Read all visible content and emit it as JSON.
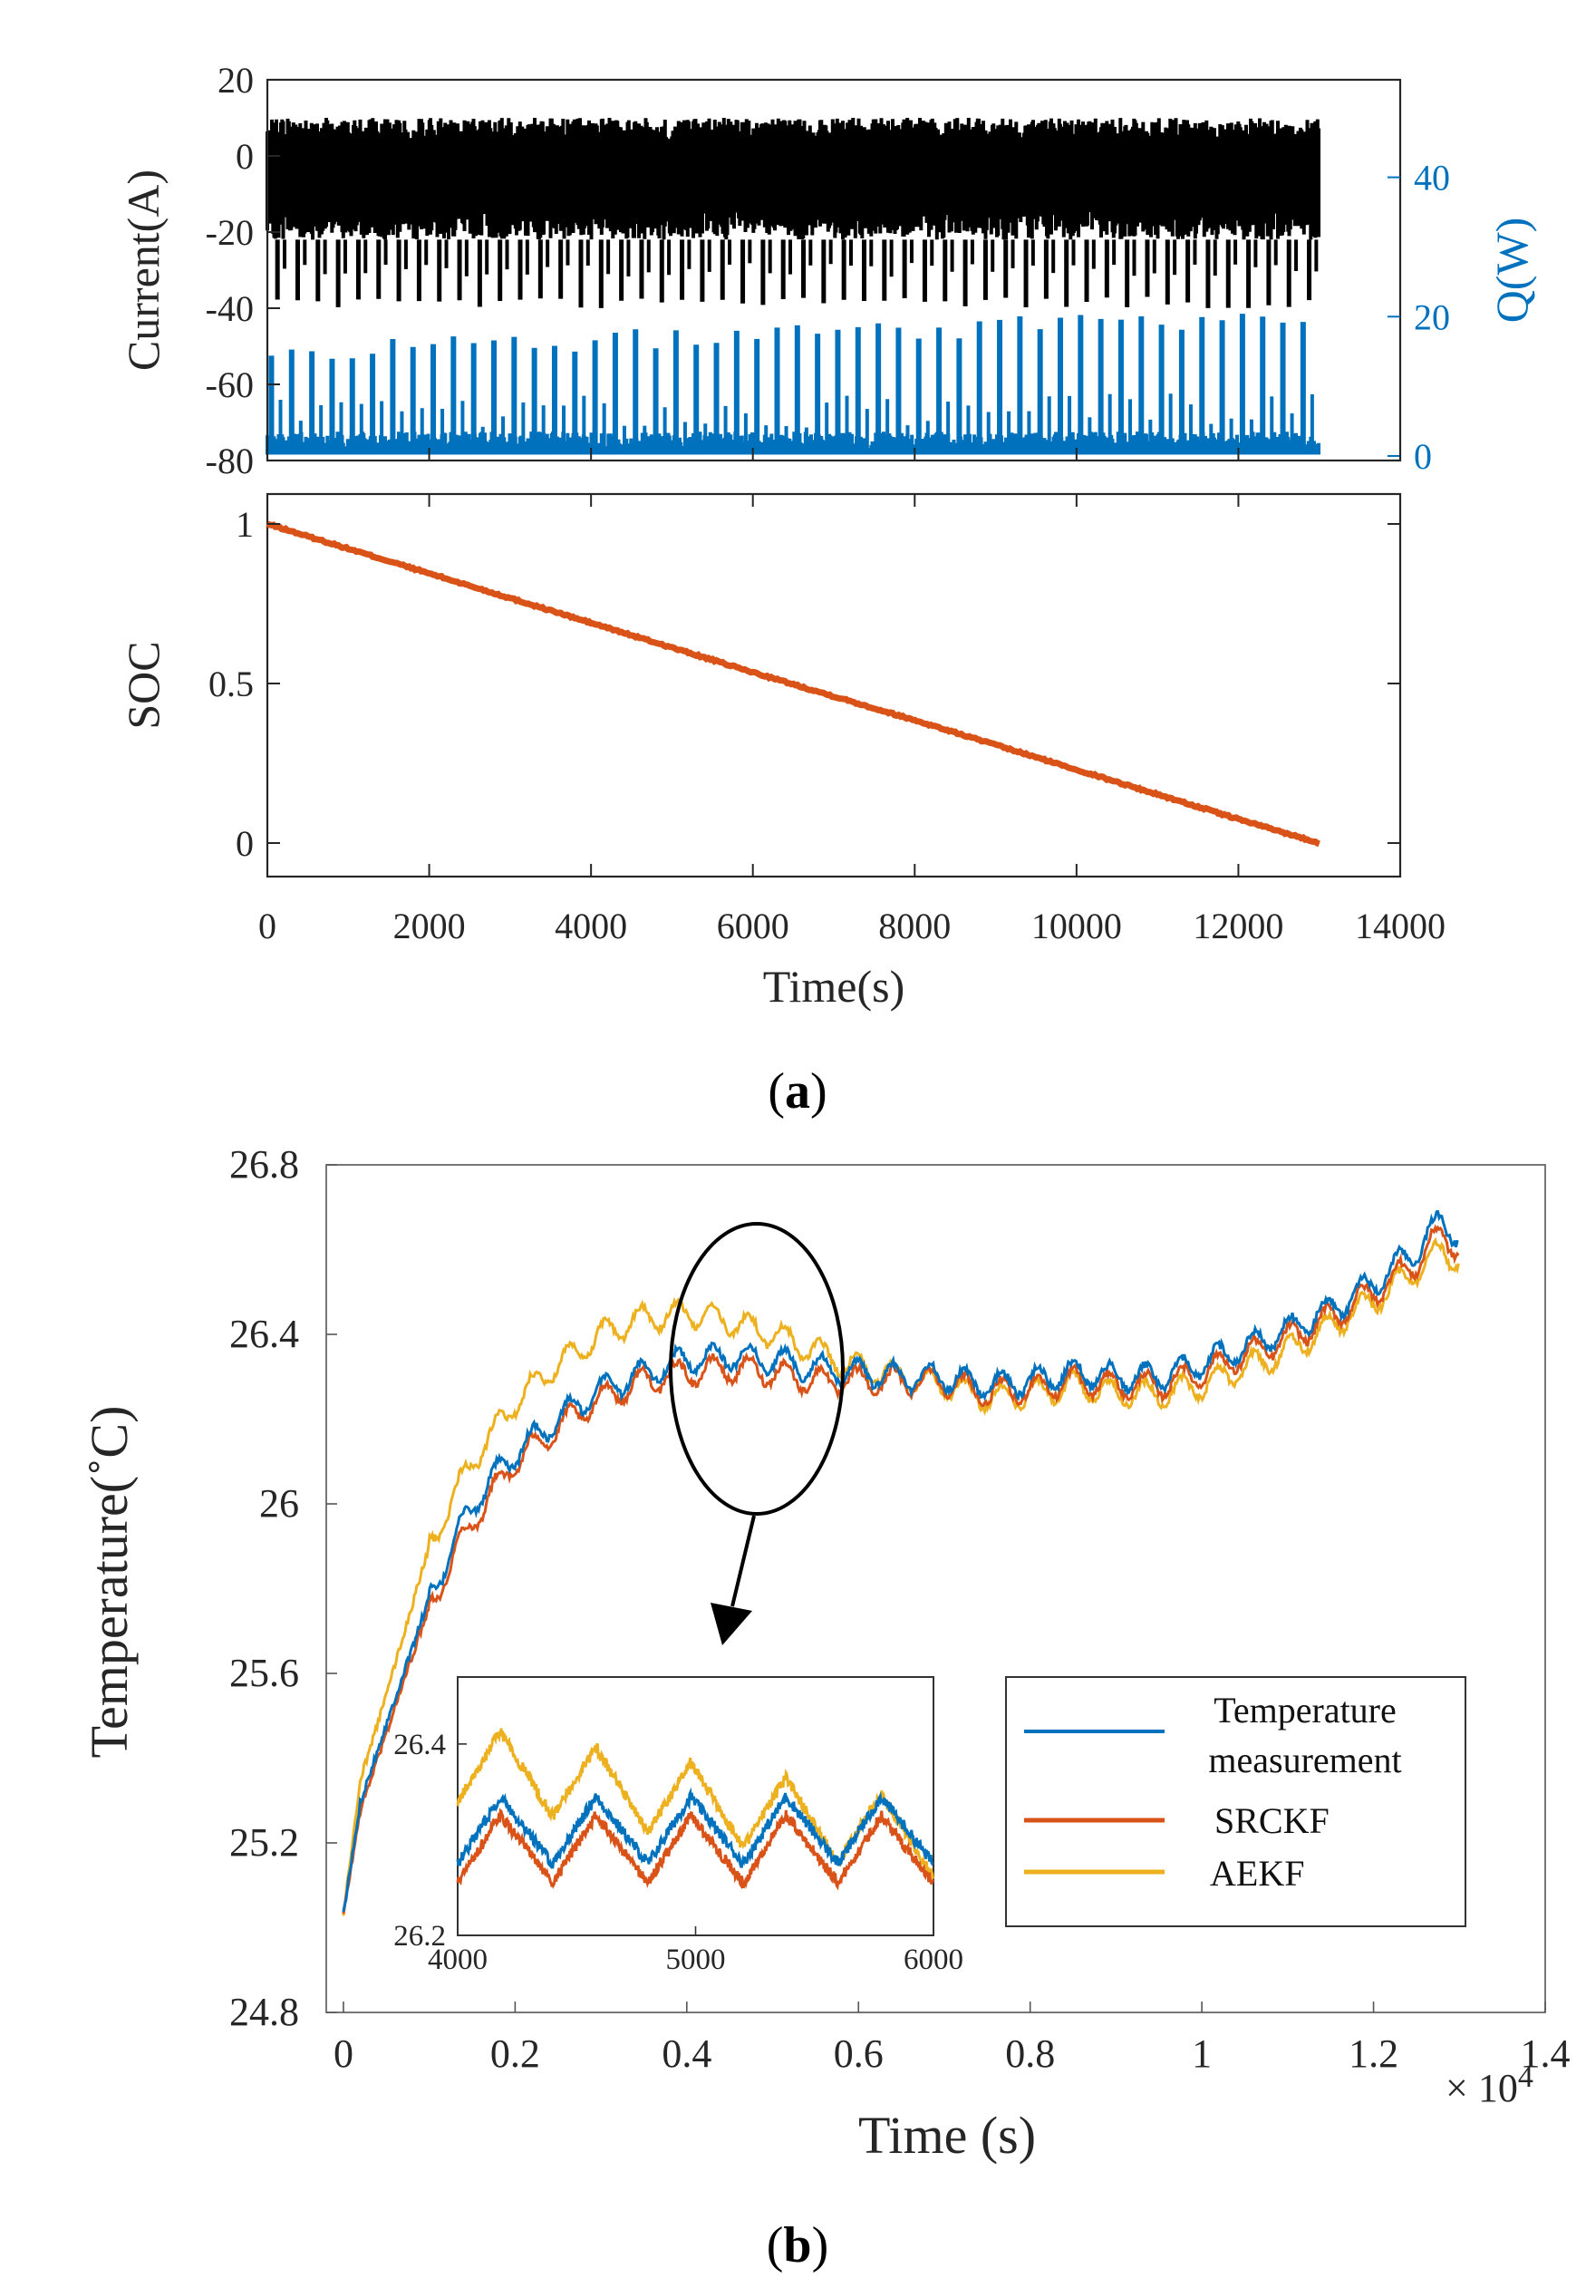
{
  "figure": {
    "panel_a_label_open": "(",
    "panel_a_label_letter": "a",
    "panel_a_label_close": ")",
    "panel_b_label_open": "(",
    "panel_b_label_letter": "b",
    "panel_b_label_close": ")"
  },
  "chart_data": [
    {
      "id": "a-top",
      "type": "line",
      "ylabel": "Current(A)",
      "ylabel_right": "Q(W)",
      "xlim": [
        0,
        14000
      ],
      "ylim": [
        -80,
        20
      ],
      "ylim_right": [
        0,
        54
      ],
      "yticks": [
        20,
        0,
        -20,
        -40,
        -60,
        -80
      ],
      "ytick_labels": [
        "20",
        "0",
        "-20",
        "-40",
        "-60",
        "-80"
      ],
      "yticks_right": [
        40,
        20,
        0
      ],
      "ytick_labels_right": [
        "40",
        "20",
        "0"
      ],
      "series": [
        {
          "name": "Current",
          "axis": "left",
          "color": "#000000",
          "x_range": [
            0,
            13000
          ],
          "upper_envelope": 10,
          "lower_envelope": -22,
          "pulse_min": -40,
          "pulse_count": 52
        },
        {
          "name": "Q",
          "axis": "right",
          "color": "#0072BD",
          "x_range": [
            0,
            13000
          ],
          "baseline": 1,
          "pulse_count": 52,
          "pulse_peak_start": 15,
          "pulse_peak_end": 20,
          "max_peak": 20
        }
      ]
    },
    {
      "id": "a-bottom",
      "type": "line",
      "xlabel": "Time(s)",
      "ylabel": "SOC",
      "xlim": [
        0,
        14000
      ],
      "ylim": [
        -0.1,
        1.05
      ],
      "xticks": [
        0,
        2000,
        4000,
        6000,
        8000,
        10000,
        12000,
        14000
      ],
      "xtick_labels": [
        "0",
        "2000",
        "4000",
        "6000",
        "8000",
        "10000",
        "12000",
        "14000"
      ],
      "yticks": [
        1,
        0.5,
        0
      ],
      "ytick_labels": [
        "1",
        "0.5",
        "0"
      ],
      "series": [
        {
          "name": "SOC",
          "color": "#D95319",
          "x": [
            0,
            2000,
            4000,
            6000,
            8000,
            10000,
            12000,
            13000
          ],
          "y": [
            1.0,
            0.845,
            0.69,
            0.535,
            0.385,
            0.23,
            0.075,
            0.0
          ]
        }
      ]
    },
    {
      "id": "b-main",
      "type": "line",
      "xlabel": "Time (s)",
      "ylabel": "Temperature(˚C)",
      "x_multiplier": "× 10",
      "x_multiplier_exp": "4",
      "xlim": [
        -0.02,
        1.4
      ],
      "ylim": [
        24.8,
        26.8
      ],
      "xticks": [
        0,
        0.2,
        0.4,
        0.6,
        0.8,
        1,
        1.2,
        1.4
      ],
      "xtick_labels": [
        "0",
        "0.2",
        "0.4",
        "0.6",
        "0.8",
        "1",
        "1.2",
        "1.4"
      ],
      "yticks": [
        26.8,
        26.4,
        26,
        25.6,
        25.2,
        24.8
      ],
      "ytick_labels": [
        "26.8",
        "26.4",
        "26",
        "25.6",
        "25.2",
        "24.8"
      ],
      "series": [
        {
          "name": "Temperature measurement",
          "legend_line1": "Temperature",
          "legend_line2": "measurement",
          "color": "#0072BD",
          "x": [
            0,
            0.02,
            0.05,
            0.1,
            0.15,
            0.2,
            0.25,
            0.3,
            0.35,
            0.4,
            0.45,
            0.5,
            0.55,
            0.6,
            0.65,
            0.7,
            0.75,
            0.8,
            0.85,
            0.9,
            0.95,
            1.0,
            1.05,
            1.1,
            1.15,
            1.2,
            1.25,
            1.28,
            1.3
          ],
          "y": [
            25.03,
            25.3,
            25.48,
            25.78,
            26.0,
            26.12,
            26.2,
            26.27,
            26.31,
            26.34,
            26.35,
            26.34,
            26.32,
            26.31,
            26.3,
            26.3,
            26.28,
            26.29,
            26.31,
            26.3,
            26.3,
            26.33,
            26.37,
            26.41,
            26.46,
            26.52,
            26.6,
            26.67,
            26.63
          ]
        },
        {
          "name": "SRCKF",
          "color": "#D95319",
          "x": [
            0,
            0.02,
            0.05,
            0.1,
            0.15,
            0.2,
            0.25,
            0.3,
            0.35,
            0.4,
            0.45,
            0.5,
            0.55,
            0.6,
            0.65,
            0.7,
            0.75,
            0.8,
            0.85,
            0.9,
            0.95,
            1.0,
            1.05,
            1.1,
            1.15,
            1.2,
            1.25,
            1.28,
            1.3
          ],
          "y": [
            25.03,
            25.28,
            25.46,
            25.76,
            25.96,
            26.1,
            26.18,
            26.25,
            26.29,
            26.31,
            26.32,
            26.31,
            26.29,
            26.29,
            26.29,
            26.29,
            26.26,
            26.27,
            26.29,
            26.28,
            26.28,
            26.31,
            26.35,
            26.39,
            26.44,
            26.5,
            26.57,
            26.64,
            26.6
          ]
        },
        {
          "name": "AEKF",
          "color": "#EDB120",
          "x": [
            0,
            0.02,
            0.05,
            0.1,
            0.15,
            0.2,
            0.25,
            0.3,
            0.35,
            0.4,
            0.45,
            0.5,
            0.55,
            0.6,
            0.65,
            0.7,
            0.75,
            0.8,
            0.85,
            0.9,
            0.95,
            1.0,
            1.05,
            1.1,
            1.15,
            1.2,
            1.25,
            1.28,
            1.3
          ],
          "y": [
            25.03,
            25.35,
            25.55,
            25.9,
            26.1,
            26.24,
            26.33,
            26.4,
            26.44,
            26.45,
            26.43,
            26.4,
            26.36,
            26.32,
            26.3,
            26.28,
            26.25,
            26.26,
            26.28,
            26.26,
            26.26,
            26.28,
            26.32,
            26.36,
            26.42,
            26.48,
            26.55,
            26.6,
            26.57
          ]
        }
      ],
      "legend_position": "bottom-right",
      "annotation": "ellipse around 0.4–0.6 with arrow to inset"
    },
    {
      "id": "b-inset",
      "type": "line",
      "xlim": [
        4000,
        6000
      ],
      "ylim": [
        26.2,
        26.47
      ],
      "xticks": [
        4000,
        5000,
        6000
      ],
      "xtick_labels": [
        "4000",
        "5000",
        "6000"
      ],
      "yticks": [
        26.4,
        26.2
      ],
      "ytick_labels": [
        "26.4",
        "26.2"
      ],
      "series": [
        {
          "name": "Temperature measurement",
          "color": "#0072BD",
          "base": 26.31,
          "amp": 0.035,
          "period": 400
        },
        {
          "name": "SRCKF",
          "color": "#D95319",
          "base": 26.29,
          "amp": 0.035,
          "period": 400
        },
        {
          "name": "AEKF",
          "color": "#EDB120",
          "base": 26.38,
          "amp": 0.04,
          "period": 400,
          "trend": -0.08
        }
      ]
    }
  ]
}
